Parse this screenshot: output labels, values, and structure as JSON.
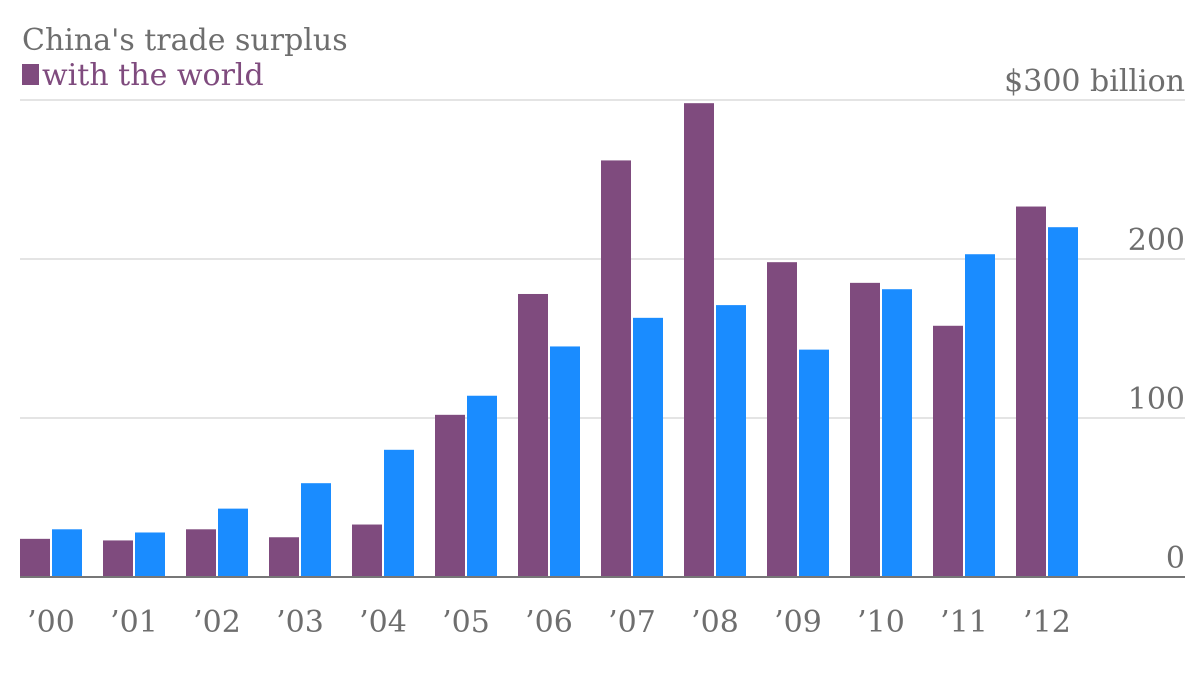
{
  "chart_data": {
    "type": "bar",
    "title": "China's trade surplus",
    "categories": [
      "’00",
      "’01",
      "’02",
      "’03",
      "’04",
      "’05",
      "’06",
      "’07",
      "’08",
      "’09",
      "’10",
      "’11",
      "’12"
    ],
    "series": [
      {
        "name": "with the world",
        "color": "#7f4b7e",
        "values": [
          24,
          23,
          30,
          25,
          33,
          102,
          178,
          262,
          298,
          198,
          185,
          158,
          233
        ]
      },
      {
        "color": "#1a8cff",
        "values": [
          30,
          28,
          43,
          59,
          80,
          114,
          145,
          163,
          171,
          143,
          181,
          203,
          220
        ]
      }
    ],
    "y_ticks": [
      {
        "value": 0,
        "label": "0"
      },
      {
        "value": 100,
        "label": "100"
      },
      {
        "value": 200,
        "label": "200"
      },
      {
        "value": 300,
        "label": "$300 billion"
      }
    ],
    "ylim": [
      0,
      300
    ],
    "grid": true,
    "y_axis_side": "right",
    "legend_position": "top-left",
    "gridline_color": "#dcdcdc",
    "baseline_color": "#777777"
  }
}
